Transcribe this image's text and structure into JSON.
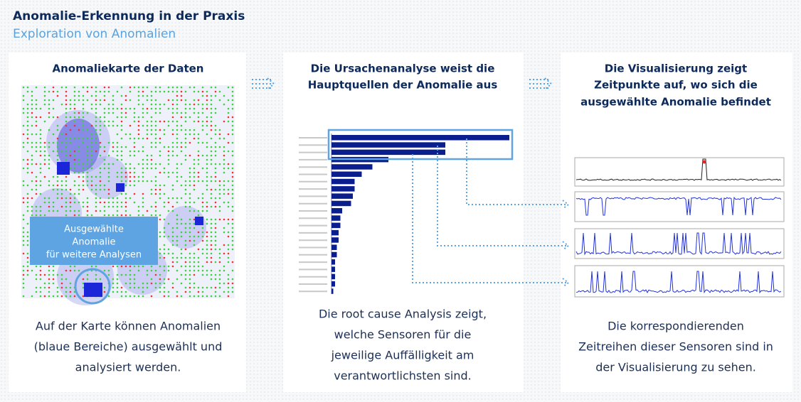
{
  "header": {
    "title": "Anomalie-Erkennung in der Praxis",
    "subtitle": "Exploration von Anomalien"
  },
  "panels": [
    {
      "title_lines": [
        "Anomaliekarte der Daten"
      ],
      "callout_lines": [
        "Ausgewählte",
        "Anomalie",
        "für weitere Analysen"
      ],
      "description_lines": [
        "Auf der Karte können Anomalien",
        "(blaue Bereiche) ausgewählt und",
        "analysiert werden."
      ]
    },
    {
      "title_lines": [
        "Die Ursachenanalyse weist die",
        "Hauptquellen der Anomalie aus"
      ],
      "description_lines": [
        "Die root cause Analysis zeigt,",
        "welche Sensoren für die",
        "jeweilige Auffälligkeit am",
        "verantwortlichsten sind."
      ],
      "chart": {
        "type": "bar",
        "xlim": [
          0,
          100
        ],
        "values": [
          100,
          64,
          64,
          32,
          23,
          17,
          13,
          13,
          12,
          11,
          6,
          5,
          5,
          4,
          4,
          3,
          3,
          2,
          2,
          2,
          2,
          1
        ]
      }
    },
    {
      "title_lines": [
        "Die Visualisierung zeigt",
        "Zeitpunkte auf, wo sich die",
        "ausgewählte Anomalie befindet"
      ],
      "description_lines": [
        "Die korrespondierenden",
        "Zeitreihen dieser Sensoren sind in",
        "der Visualisierung zu sehen."
      ]
    }
  ]
}
